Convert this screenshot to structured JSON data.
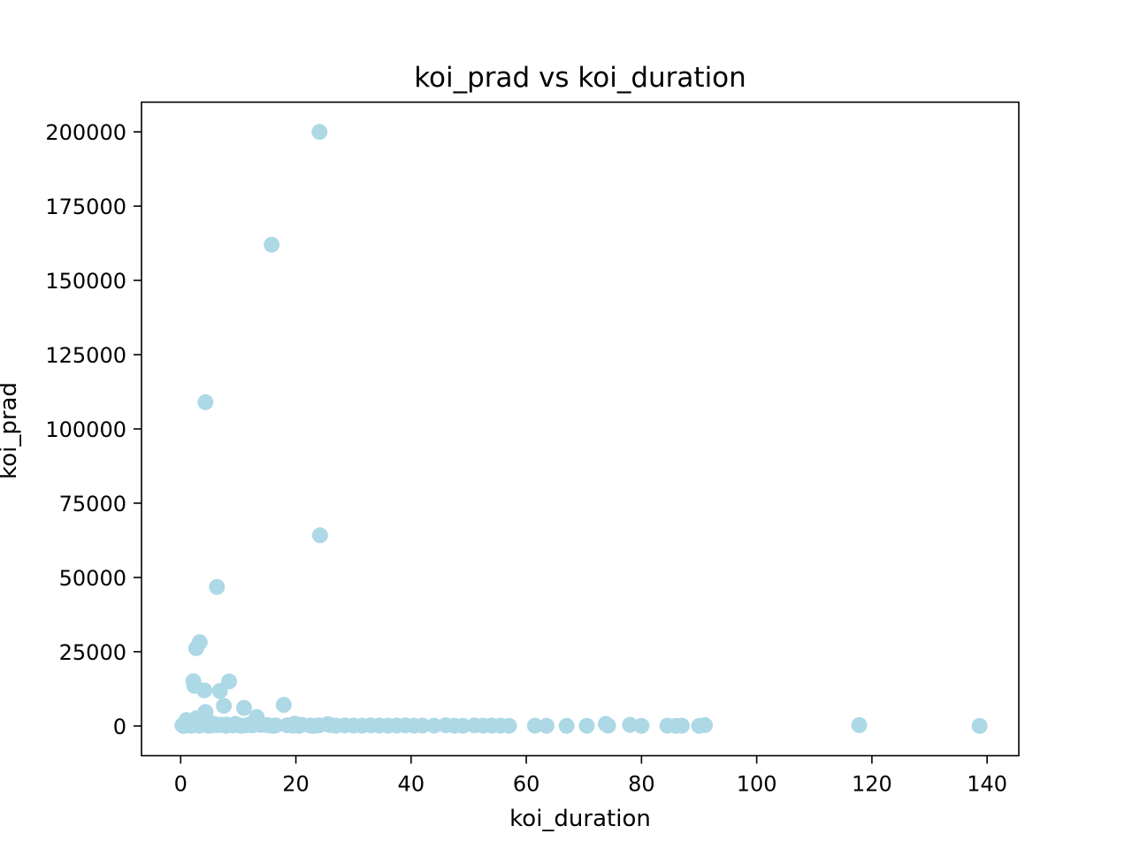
{
  "chart_data": {
    "type": "scatter",
    "title": "koi_prad vs koi_duration",
    "xlabel": "koi_duration",
    "ylabel": "koi_prad",
    "xlim": [
      -6.8,
      145.5
    ],
    "ylim": [
      -10000,
      210000
    ],
    "xticks": [
      0,
      20,
      40,
      60,
      80,
      100,
      120,
      140
    ],
    "yticks": [
      0,
      25000,
      50000,
      75000,
      100000,
      125000,
      150000,
      175000,
      200000
    ],
    "grid": false,
    "legend": "none",
    "colors": {
      "marker": "#add8e6",
      "axis": "#000000",
      "background": "#ffffff"
    },
    "series": [
      {
        "x": [
          24.1,
          15.8,
          4.3,
          24.2,
          6.3,
          3.3,
          2.7,
          2.2,
          8.4,
          4.1,
          6.8,
          2.4,
          7.5,
          17.9,
          4.3,
          11,
          13.2,
          2.7,
          1.4,
          0.3,
          0.8,
          1.2,
          1.6,
          2.0,
          2.5,
          3.0,
          3.5,
          4.0,
          4.5,
          5.0,
          5.5,
          6.0,
          6.5,
          7.0,
          8.0,
          9.0,
          10.0,
          11.5,
          12.5,
          14.0,
          15.0,
          16.5,
          18.5,
          19.5,
          21.0,
          22.5,
          24.0,
          25.5,
          27.0,
          28.5,
          30.0,
          31.5,
          33.0,
          34.5,
          36.0,
          37.5,
          39.0,
          40.5,
          42.0,
          44.0,
          46.0,
          47.5,
          49.0,
          51.0,
          52.5,
          54.0,
          55.5,
          57.0,
          61.5,
          63.5,
          67.0,
          70.5,
          73.8,
          74.2,
          78.0,
          80.0,
          84.5,
          86.0,
          87.0,
          90.0,
          91.0,
          117.8,
          138.7,
          1.0,
          2.2,
          3.8,
          5.2,
          9.5,
          12.0,
          19.8,
          26.0,
          0.5,
          1.8,
          3.2,
          4.8,
          7.8,
          10.5,
          16.0,
          20.5,
          23.0
        ],
        "y": [
          200000,
          162000,
          109000,
          64200,
          46800,
          28200,
          26200,
          15100,
          15000,
          12000,
          11800,
          13500,
          6800,
          7100,
          4700,
          6100,
          3000,
          2600,
          1500,
          200,
          900,
          1200,
          1000,
          800,
          1500,
          600,
          400,
          700,
          300,
          500,
          200,
          600,
          300,
          400,
          500,
          200,
          300,
          250,
          200,
          350,
          300,
          200,
          250,
          100,
          400,
          150,
          200,
          600,
          100,
          200,
          150,
          100,
          200,
          150,
          100,
          150,
          200,
          100,
          150,
          100,
          250,
          100,
          50,
          200,
          100,
          150,
          100,
          50,
          100,
          80,
          50,
          60,
          700,
          120,
          400,
          60,
          90,
          50,
          80,
          40,
          300,
          300,
          20,
          2000,
          1600,
          1300,
          1100,
          700,
          500,
          800,
          300,
          0,
          50,
          100,
          80,
          60,
          40,
          30,
          20,
          10
        ]
      }
    ]
  }
}
